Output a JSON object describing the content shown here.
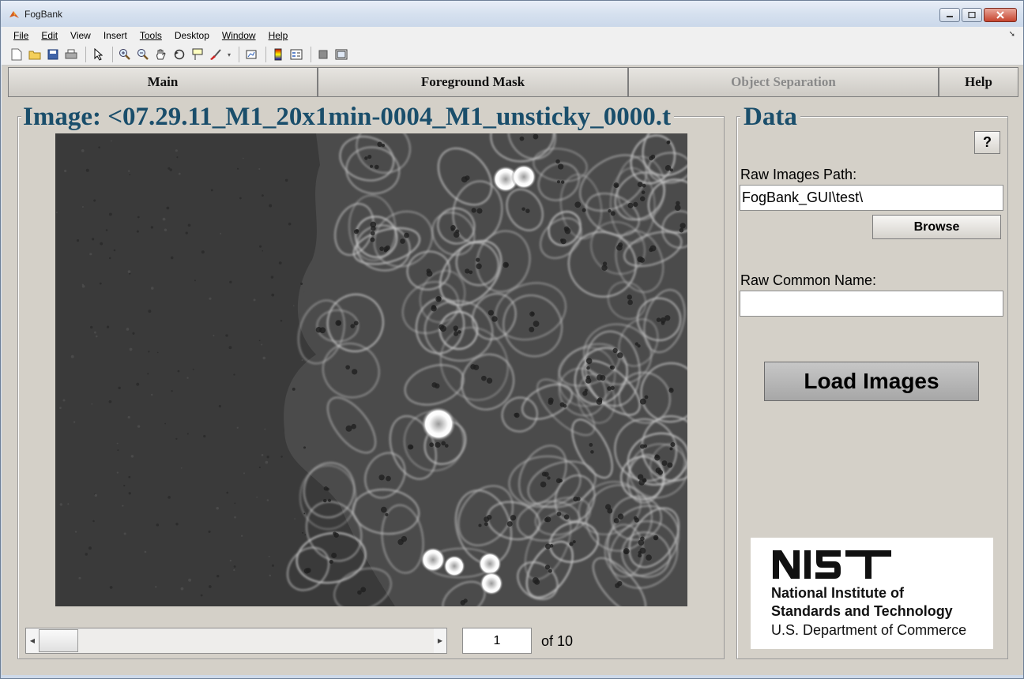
{
  "window": {
    "title": "FogBank"
  },
  "menu": {
    "items": [
      "File",
      "Edit",
      "View",
      "Insert",
      "Tools",
      "Desktop",
      "Window",
      "Help"
    ]
  },
  "toolbar": {
    "icons": [
      "new-icon",
      "open-icon",
      "save-icon",
      "print-icon",
      "pointer-icon",
      "zoom-in-icon",
      "zoom-out-icon",
      "pan-icon",
      "rotate-icon",
      "data-cursor-icon",
      "brush-icon",
      "link-plot-icon",
      "colorbar-icon",
      "legend-icon",
      "hide-tools-icon",
      "show-tools-icon"
    ]
  },
  "tabs": [
    {
      "label": "Main",
      "enabled": true
    },
    {
      "label": "Foreground Mask",
      "enabled": true
    },
    {
      "label": "Object Separation",
      "enabled": false
    },
    {
      "label": "Help",
      "enabled": true
    }
  ],
  "image_panel": {
    "title": "Image: <07.29.11_M1_20x1min-0004_M1_unsticky_0000.t"
  },
  "slider": {
    "current_frame": "1",
    "total_label": "of 10"
  },
  "data_panel": {
    "title": "Data",
    "help_label": "?",
    "raw_path_label": "Raw Images Path:",
    "raw_path_value": "FogBank_GUI\\test\\",
    "browse_label": "Browse",
    "common_name_label": "Raw Common Name:",
    "common_name_value": "",
    "load_label": "Load Images"
  },
  "logo": {
    "wordmark": "NIST",
    "line1": "National Institute of",
    "line2": "Standards and Technology",
    "line3": "U.S. Department of Commerce"
  }
}
